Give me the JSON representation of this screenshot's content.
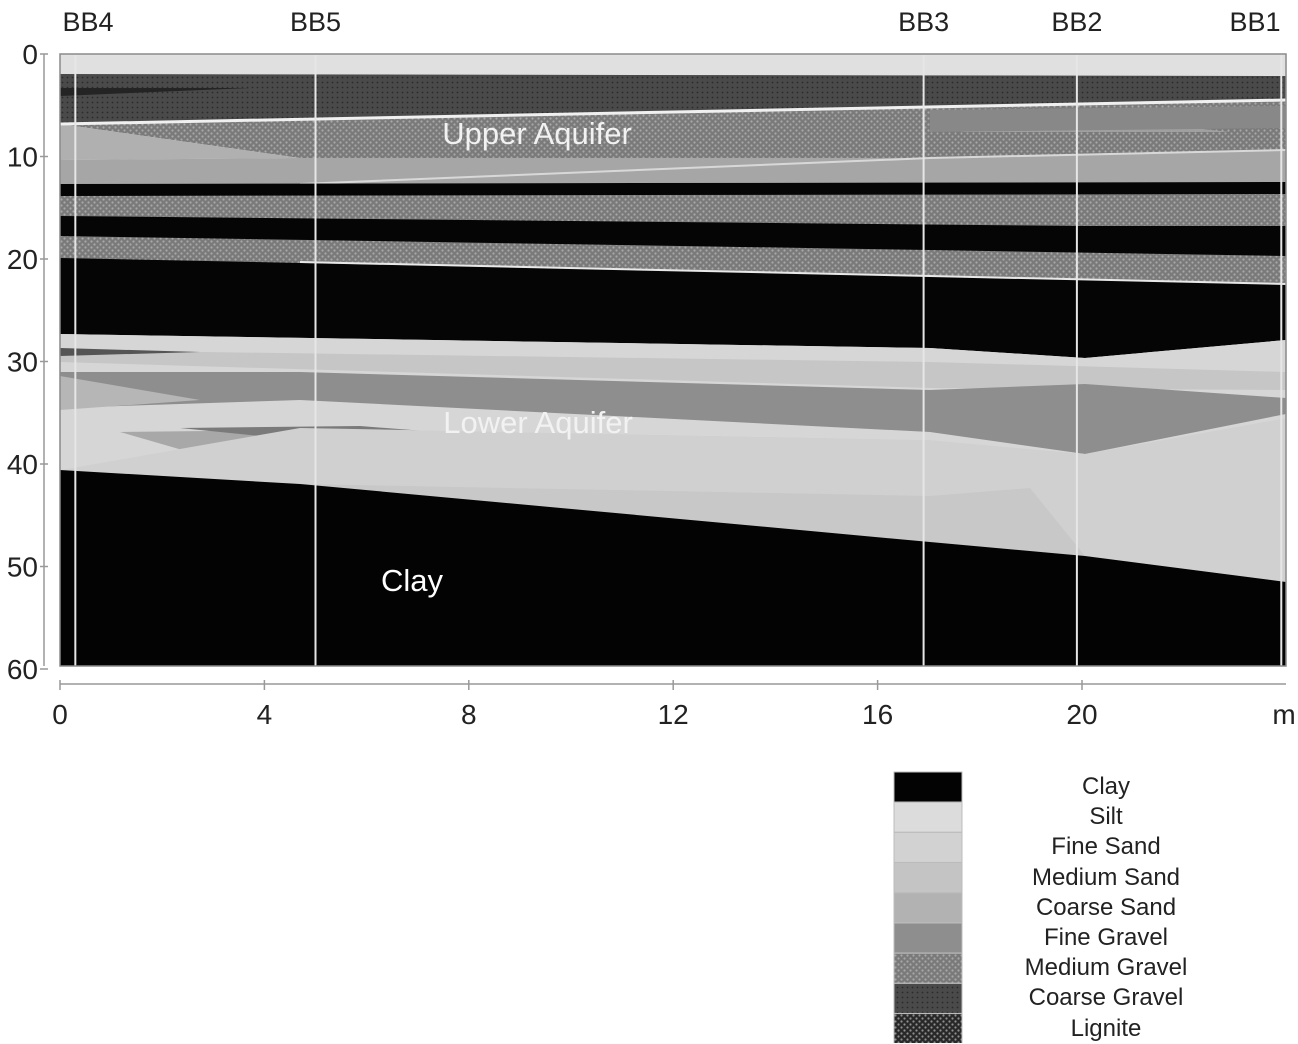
{
  "boreholes": [
    {
      "name": "BB4",
      "distance_m": 0.3
    },
    {
      "name": "BB5",
      "distance_m": 5.0
    },
    {
      "name": "BB3",
      "distance_m": 16.9
    },
    {
      "name": "BB2",
      "distance_m": 19.9
    },
    {
      "name": "BB1",
      "distance_m": 23.9
    }
  ],
  "depth_ticks": [
    "0",
    "10",
    "20",
    "30",
    "40",
    "50",
    "60"
  ],
  "distance_ticks": [
    "0",
    "4",
    "8",
    "12",
    "16",
    "20"
  ],
  "distance_unit": "m",
  "zone_labels": {
    "upper_aquifer": "Upper Aquifer",
    "lower_aquifer": "Lower Aquifer",
    "clay": "Clay"
  },
  "legend": [
    {
      "label": "Clay",
      "color": "#030303"
    },
    {
      "label": "Silt",
      "color": "#dcdcdc"
    },
    {
      "label": "Fine Sand",
      "color": "#d2d2d2"
    },
    {
      "label": "Medium Sand",
      "color": "#c4c4c4"
    },
    {
      "label": "Coarse Sand",
      "color": "#b2b2b2"
    },
    {
      "label": "Fine Gravel",
      "color": "#8e8e8e"
    },
    {
      "label": "Medium Gravel",
      "color": "#6a6a6a"
    },
    {
      "label": "Coarse Gravel",
      "color": "#4a4a4a"
    },
    {
      "label": "Lignite",
      "color": "#303030"
    }
  ]
}
